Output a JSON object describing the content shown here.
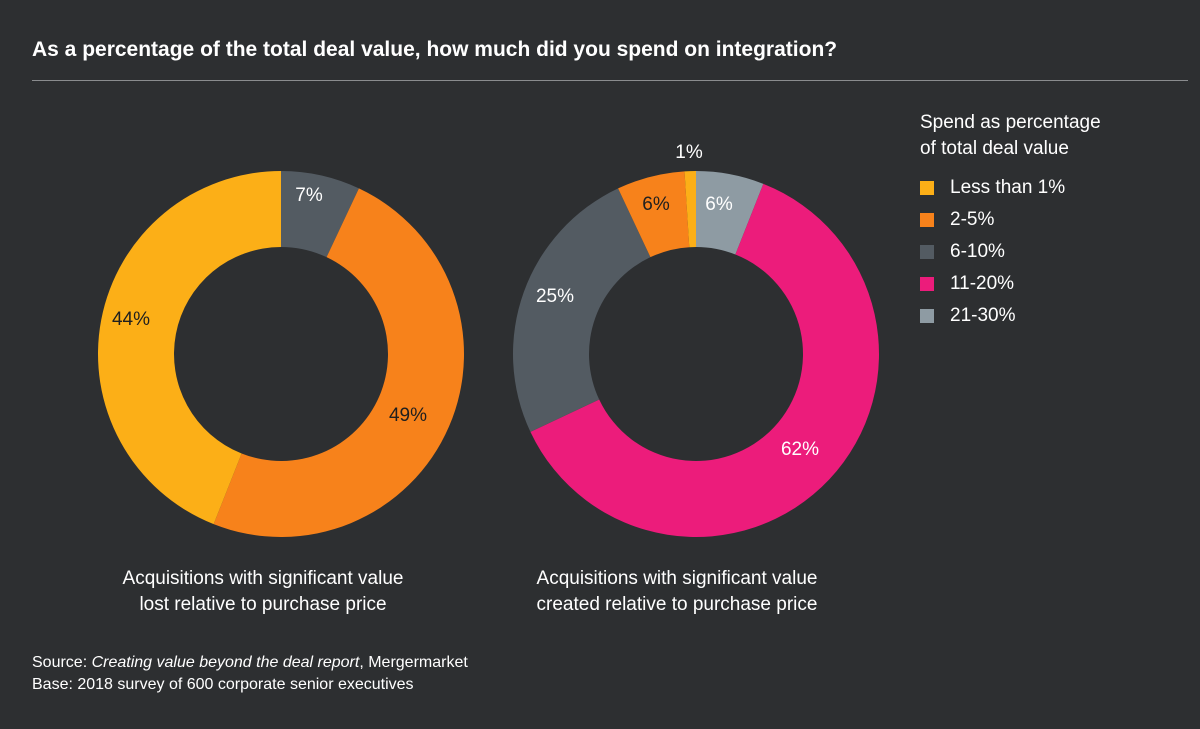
{
  "title": "As a percentage of the total deal value, how much did you spend on integration?",
  "legend": {
    "title_line1": "Spend as percentage",
    "title_line2": "of total deal value",
    "items": [
      {
        "label": "Less than 1%",
        "color": "#fcaf17"
      },
      {
        "label": "2-5%",
        "color": "#f7821b"
      },
      {
        "label": "6-10%",
        "color": "#535b62"
      },
      {
        "label": "11-20%",
        "color": "#ec1c7b"
      },
      {
        "label": "21-30%",
        "color": "#8e9ba3"
      }
    ]
  },
  "chart_data": [
    {
      "type": "pie",
      "donut": true,
      "caption_line1": "Acquisitions with significant value",
      "caption_line2": "lost relative to purchase price",
      "slices": [
        {
          "category": "6-10%",
          "value": 7,
          "label": "7%",
          "color": "#535b62"
        },
        {
          "category": "2-5%",
          "value": 49,
          "label": "49%",
          "color": "#f7821b"
        },
        {
          "category": "Less than 1%",
          "value": 44,
          "label": "44%",
          "color": "#fcaf17"
        }
      ]
    },
    {
      "type": "pie",
      "donut": true,
      "caption_line1": "Acquisitions with significant value",
      "caption_line2": "created relative to purchase price",
      "slices": [
        {
          "category": "21-30%",
          "value": 6,
          "label": "6%",
          "color": "#8e9ba3"
        },
        {
          "category": "11-20%",
          "value": 62,
          "label": "62%",
          "color": "#ec1c7b"
        },
        {
          "category": "6-10%",
          "value": 25,
          "label": "25%",
          "color": "#535b62"
        },
        {
          "category": "2-5%",
          "value": 6,
          "label": "6%",
          "color": "#f7821b"
        },
        {
          "category": "Less than 1%",
          "value": 1,
          "label": "1%",
          "color": "#fcaf17"
        }
      ]
    }
  ],
  "footer": {
    "source_prefix": "Source: ",
    "source_title": "Creating value beyond the deal report",
    "source_suffix": ", Mergermarket",
    "base": "Base: 2018 survey of 600 corporate senior executives"
  }
}
